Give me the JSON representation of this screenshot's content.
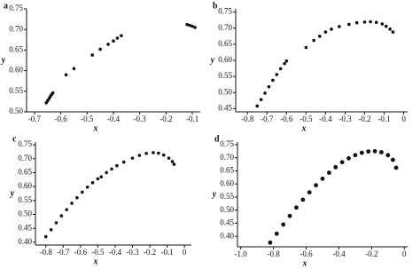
{
  "chart_data": [
    {
      "type": "scatter",
      "label": "a",
      "xlabel": "x",
      "ylabel": "y",
      "color": "#111111",
      "x": [
        -0.655,
        -0.65,
        -0.645,
        -0.64,
        -0.635,
        -0.63,
        -0.58,
        -0.55,
        -0.48,
        -0.45,
        -0.42,
        -0.4,
        -0.385,
        -0.37,
        -0.12,
        -0.11,
        -0.1,
        -0.09
      ],
      "values": [
        0.522,
        0.527,
        0.532,
        0.537,
        0.542,
        0.546,
        0.59,
        0.605,
        0.638,
        0.652,
        0.664,
        0.672,
        0.679,
        0.685,
        0.712,
        0.71,
        0.708,
        0.705
      ],
      "xlim": [
        -0.73,
        -0.07
      ],
      "xticks": [
        -0.7,
        -0.6,
        -0.5,
        -0.4,
        -0.3,
        -0.2,
        -0.1
      ],
      "ylim": [
        0.5,
        0.75
      ],
      "yticks": [
        {
          "value": 0.5,
          "label": "0.50"
        },
        0.55,
        {
          "value": 0.6,
          "label": "0.60"
        },
        0.65,
        {
          "value": 0.7,
          "label": "0.70"
        },
        0.75
      ]
    },
    {
      "type": "scatter",
      "label": "b",
      "xlabel": "x",
      "ylabel": "y",
      "color": "#111111",
      "x": [
        -0.75,
        -0.73,
        -0.71,
        -0.69,
        -0.67,
        -0.65,
        -0.63,
        -0.61,
        -0.6,
        -0.5,
        -0.46,
        -0.43,
        -0.4,
        -0.37,
        -0.33,
        -0.28,
        -0.24,
        -0.2,
        -0.17,
        -0.14,
        -0.11,
        -0.09,
        -0.07,
        -0.055
      ],
      "values": [
        0.458,
        0.478,
        0.498,
        0.518,
        0.538,
        0.556,
        0.574,
        0.59,
        0.598,
        0.64,
        0.662,
        0.675,
        0.688,
        0.697,
        0.705,
        0.712,
        0.717,
        0.719,
        0.72,
        0.718,
        0.713,
        0.706,
        0.697,
        0.688
      ],
      "xlim": [
        -0.86,
        0.02
      ],
      "xticks": [
        -0.8,
        -0.7,
        -0.6,
        -0.5,
        -0.4,
        -0.3,
        -0.2,
        -0.1,
        0
      ],
      "ylim": [
        0.44,
        0.76
      ],
      "yticks": [
        0.45,
        {
          "value": 0.5,
          "label": "0.50"
        },
        0.55,
        {
          "value": 0.6,
          "label": "0.60"
        },
        0.65,
        {
          "value": 0.7,
          "label": "0.70"
        },
        0.75
      ]
    },
    {
      "type": "scatter",
      "label": "c",
      "xlabel": "x",
      "ylabel": "y",
      "color": "#111111",
      "x": [
        -0.8,
        -0.77,
        -0.74,
        -0.71,
        -0.68,
        -0.65,
        -0.62,
        -0.59,
        -0.56,
        -0.53,
        -0.5,
        -0.48,
        -0.45,
        -0.42,
        -0.39,
        -0.35,
        -0.3,
        -0.26,
        -0.22,
        -0.18,
        -0.15,
        -0.12,
        -0.09,
        -0.07,
        -0.06
      ],
      "values": [
        0.42,
        0.445,
        0.47,
        0.495,
        0.517,
        0.54,
        0.56,
        0.58,
        0.598,
        0.614,
        0.628,
        0.635,
        0.65,
        0.663,
        0.675,
        0.688,
        0.702,
        0.712,
        0.719,
        0.722,
        0.72,
        0.713,
        0.702,
        0.69,
        0.68
      ],
      "xlim": [
        -0.86,
        0.04
      ],
      "xticks": [
        -0.8,
        -0.7,
        -0.6,
        -0.5,
        -0.4,
        -0.3,
        -0.2,
        -0.1,
        0
      ],
      "ylim": [
        0.39,
        0.76
      ],
      "yticks": [
        {
          "value": 0.4,
          "label": "0.40"
        },
        0.45,
        {
          "value": 0.5,
          "label": "0.50"
        },
        0.55,
        {
          "value": 0.6,
          "label": "0.60"
        },
        0.65,
        {
          "value": 0.7,
          "label": "0.70"
        },
        0.75
      ]
    },
    {
      "type": "scatter",
      "label": "d",
      "xlabel": "x",
      "ylabel": "y",
      "color": "#111111",
      "x": [
        -0.82,
        -0.78,
        -0.74,
        -0.7,
        -0.66,
        -0.62,
        -0.58,
        -0.54,
        -0.5,
        -0.46,
        -0.42,
        -0.38,
        -0.34,
        -0.3,
        -0.26,
        -0.22,
        -0.18,
        -0.14,
        -0.1,
        -0.07,
        -0.05
      ],
      "values": [
        0.376,
        0.41,
        0.445,
        0.478,
        0.51,
        0.54,
        0.568,
        0.595,
        0.62,
        0.643,
        0.664,
        0.683,
        0.698,
        0.71,
        0.719,
        0.724,
        0.725,
        0.721,
        0.71,
        0.692,
        0.662
      ],
      "xlim": [
        -1.02,
        0.02
      ],
      "xticks": [
        {
          "value": -1,
          "label": "-1.0"
        },
        -0.8,
        -0.6,
        -0.4,
        -0.2,
        0
      ],
      "ylim": [
        0.36,
        0.76
      ],
      "yticks": [
        {
          "value": 0.4,
          "label": "0.40"
        },
        0.45,
        {
          "value": 0.5,
          "label": "0.50"
        },
        0.55,
        {
          "value": 0.6,
          "label": "0.60"
        },
        0.65,
        {
          "value": 0.7,
          "label": "0.70"
        },
        0.75
      ]
    }
  ]
}
